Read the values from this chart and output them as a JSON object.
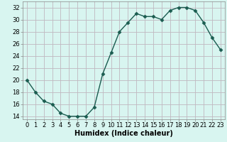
{
  "x": [
    0,
    1,
    2,
    3,
    4,
    5,
    6,
    7,
    8,
    9,
    10,
    11,
    12,
    13,
    14,
    15,
    16,
    17,
    18,
    19,
    20,
    21,
    22,
    23
  ],
  "y": [
    20,
    18,
    16.5,
    16,
    14.5,
    14,
    14,
    14,
    15.5,
    21,
    24.5,
    28,
    29.5,
    31,
    30.5,
    30.5,
    30,
    31.5,
    32,
    32,
    31.5,
    29.5,
    27,
    25
  ],
  "line_color": "#1a5c50",
  "marker": "D",
  "marker_size": 2.5,
  "bg_color": "#d8f5f0",
  "grid_color": "#c0b8c0",
  "xlabel": "Humidex (Indice chaleur)",
  "xlim": [
    -0.5,
    23.5
  ],
  "ylim": [
    13.5,
    33
  ],
  "yticks": [
    14,
    16,
    18,
    20,
    22,
    24,
    26,
    28,
    30,
    32
  ],
  "xticks": [
    0,
    1,
    2,
    3,
    4,
    5,
    6,
    7,
    8,
    9,
    10,
    11,
    12,
    13,
    14,
    15,
    16,
    17,
    18,
    19,
    20,
    21,
    22,
    23
  ],
  "xlabel_fontsize": 7,
  "tick_fontsize": 6,
  "linewidth": 1.0
}
